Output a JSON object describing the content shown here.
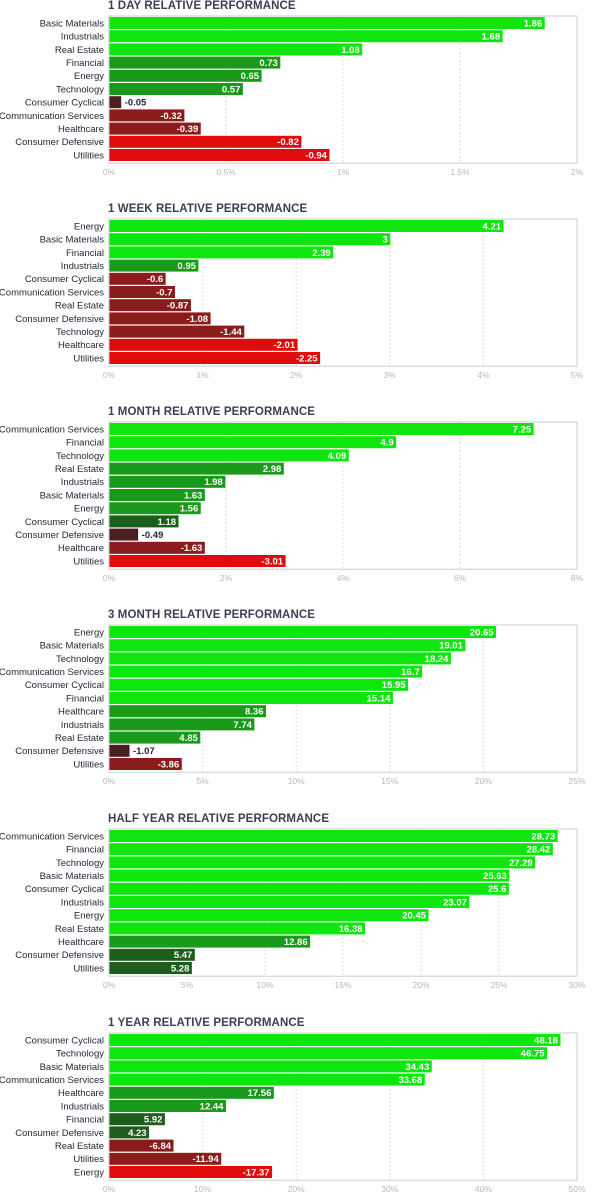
{
  "colors": {
    "bright_green": "#0ee60e",
    "mid_green": "#1a9a1a",
    "dark_green": "#1d5e1d",
    "dark_red": "#4a1f1f",
    "mid_red": "#8b1c1c",
    "bright_red": "#e00c0c",
    "gridline": "#d9dbe2",
    "frame": "#c9ccd6"
  },
  "chart_data": [
    {
      "type": "bar",
      "title": "1 DAY RELATIVE PERFORMANCE",
      "categories": [
        "Basic Materials",
        "Industrials",
        "Real Estate",
        "Financial",
        "Energy",
        "Technology",
        "Consumer Cyclical",
        "Communication Services",
        "Healthcare",
        "Consumer Defensive",
        "Utilities"
      ],
      "values": [
        1.86,
        1.68,
        1.08,
        0.73,
        0.65,
        0.57,
        -0.05,
        -0.32,
        -0.39,
        -0.82,
        -0.94
      ],
      "value_labels": [
        "1.86",
        "1.68",
        "1.08",
        "0.73",
        "0.65",
        "0.57",
        "-0.05",
        "-0.32",
        "-0.39",
        "-0.82",
        "-0.94"
      ],
      "xlim": [
        0,
        2
      ],
      "ticks": [
        0,
        0.5,
        1,
        1.5,
        2
      ],
      "tick_labels": [
        "0%",
        "0.5%",
        "1%",
        "1.5%",
        "2%"
      ],
      "grid": true
    },
    {
      "type": "bar",
      "title": "1 WEEK RELATIVE PERFORMANCE",
      "categories": [
        "Energy",
        "Basic Materials",
        "Financial",
        "Industrials",
        "Consumer Cyclical",
        "Communication Services",
        "Real Estate",
        "Consumer Defensive",
        "Technology",
        "Healthcare",
        "Utilities"
      ],
      "values": [
        4.21,
        3,
        2.39,
        0.95,
        -0.6,
        -0.7,
        -0.87,
        -1.08,
        -1.44,
        -2.01,
        -2.25
      ],
      "value_labels": [
        "4.21",
        "3",
        "2.39",
        "0.95",
        "-0.6",
        "-0.7",
        "-0.87",
        "-1.08",
        "-1.44",
        "-2.01",
        "-2.25"
      ],
      "xlim": [
        0,
        5
      ],
      "ticks": [
        0,
        1,
        2,
        3,
        4,
        5
      ],
      "tick_labels": [
        "0%",
        "1%",
        "2%",
        "3%",
        "4%",
        "5%"
      ],
      "grid": true
    },
    {
      "type": "bar",
      "title": "1 MONTH RELATIVE PERFORMANCE",
      "categories": [
        "Communication Services",
        "Financial",
        "Technology",
        "Real Estate",
        "Industrials",
        "Basic Materials",
        "Energy",
        "Consumer Cyclical",
        "Consumer Defensive",
        "Healthcare",
        "Utilities"
      ],
      "values": [
        7.25,
        4.9,
        4.09,
        2.98,
        1.98,
        1.63,
        1.56,
        1.18,
        -0.49,
        -1.63,
        -3.01
      ],
      "value_labels": [
        "7.25",
        "4.9",
        "4.09",
        "2.98",
        "1.98",
        "1.63",
        "1.56",
        "1.18",
        "-0.49",
        "-1.63",
        "-3.01"
      ],
      "xlim": [
        0,
        8
      ],
      "ticks": [
        0,
        2,
        4,
        6,
        8
      ],
      "tick_labels": [
        "0%",
        "2%",
        "4%",
        "6%",
        "8%"
      ],
      "grid": true
    },
    {
      "type": "bar",
      "title": "3 MONTH RELATIVE PERFORMANCE",
      "categories": [
        "Energy",
        "Basic Materials",
        "Technology",
        "Communication Services",
        "Consumer Cyclical",
        "Financial",
        "Healthcare",
        "Industrials",
        "Real Estate",
        "Consumer Defensive",
        "Utilities"
      ],
      "values": [
        20.65,
        19.01,
        18.24,
        16.7,
        15.95,
        15.14,
        8.36,
        7.74,
        4.85,
        -1.07,
        -3.86
      ],
      "value_labels": [
        "20.65",
        "19.01",
        "18.24",
        "16.7",
        "15.95",
        "15.14",
        "8.36",
        "7.74",
        "4.85",
        "-1.07",
        "-3.86"
      ],
      "xlim": [
        0,
        25
      ],
      "ticks": [
        0,
        5,
        10,
        15,
        20,
        25
      ],
      "tick_labels": [
        "0%",
        "5%",
        "10%",
        "15%",
        "20%",
        "25%"
      ],
      "grid": true
    },
    {
      "type": "bar",
      "title": "HALF YEAR RELATIVE PERFORMANCE",
      "categories": [
        "Communication Services",
        "Financial",
        "Technology",
        "Basic Materials",
        "Consumer Cyclical",
        "Industrials",
        "Energy",
        "Real Estate",
        "Healthcare",
        "Consumer Defensive",
        "Utilities"
      ],
      "values": [
        28.73,
        28.42,
        27.29,
        25.63,
        25.6,
        23.07,
        20.45,
        16.38,
        12.86,
        5.47,
        5.28
      ],
      "value_labels": [
        "28.73",
        "28.42",
        "27.29",
        "25.63",
        "25.6",
        "23.07",
        "20.45",
        "16.38",
        "12.86",
        "5.47",
        "5.28"
      ],
      "xlim": [
        0,
        30
      ],
      "ticks": [
        0,
        5,
        10,
        15,
        20,
        25,
        30
      ],
      "tick_labels": [
        "0%",
        "5%",
        "10%",
        "15%",
        "20%",
        "25%",
        "30%"
      ],
      "grid": true
    },
    {
      "type": "bar",
      "title": "1 YEAR RELATIVE PERFORMANCE",
      "categories": [
        "Consumer Cyclical",
        "Technology",
        "Basic Materials",
        "Communication Services",
        "Healthcare",
        "Industrials",
        "Financial",
        "Consumer Defensive",
        "Real Estate",
        "Utilities",
        "Energy"
      ],
      "values": [
        48.18,
        46.75,
        34.43,
        33.68,
        17.56,
        12.44,
        5.92,
        4.23,
        -6.84,
        -11.94,
        -17.37
      ],
      "value_labels": [
        "48.18",
        "46.75",
        "34.43",
        "33.68",
        "17.56",
        "12.44",
        "5.92",
        "4.23",
        "-6.84",
        "-11.94",
        "-17.37"
      ],
      "xlim": [
        0,
        50
      ],
      "ticks": [
        0,
        10,
        20,
        30,
        40,
        50
      ],
      "tick_labels": [
        "0%",
        "10%",
        "20%",
        "30%",
        "40%",
        "50%"
      ],
      "grid": true
    }
  ]
}
